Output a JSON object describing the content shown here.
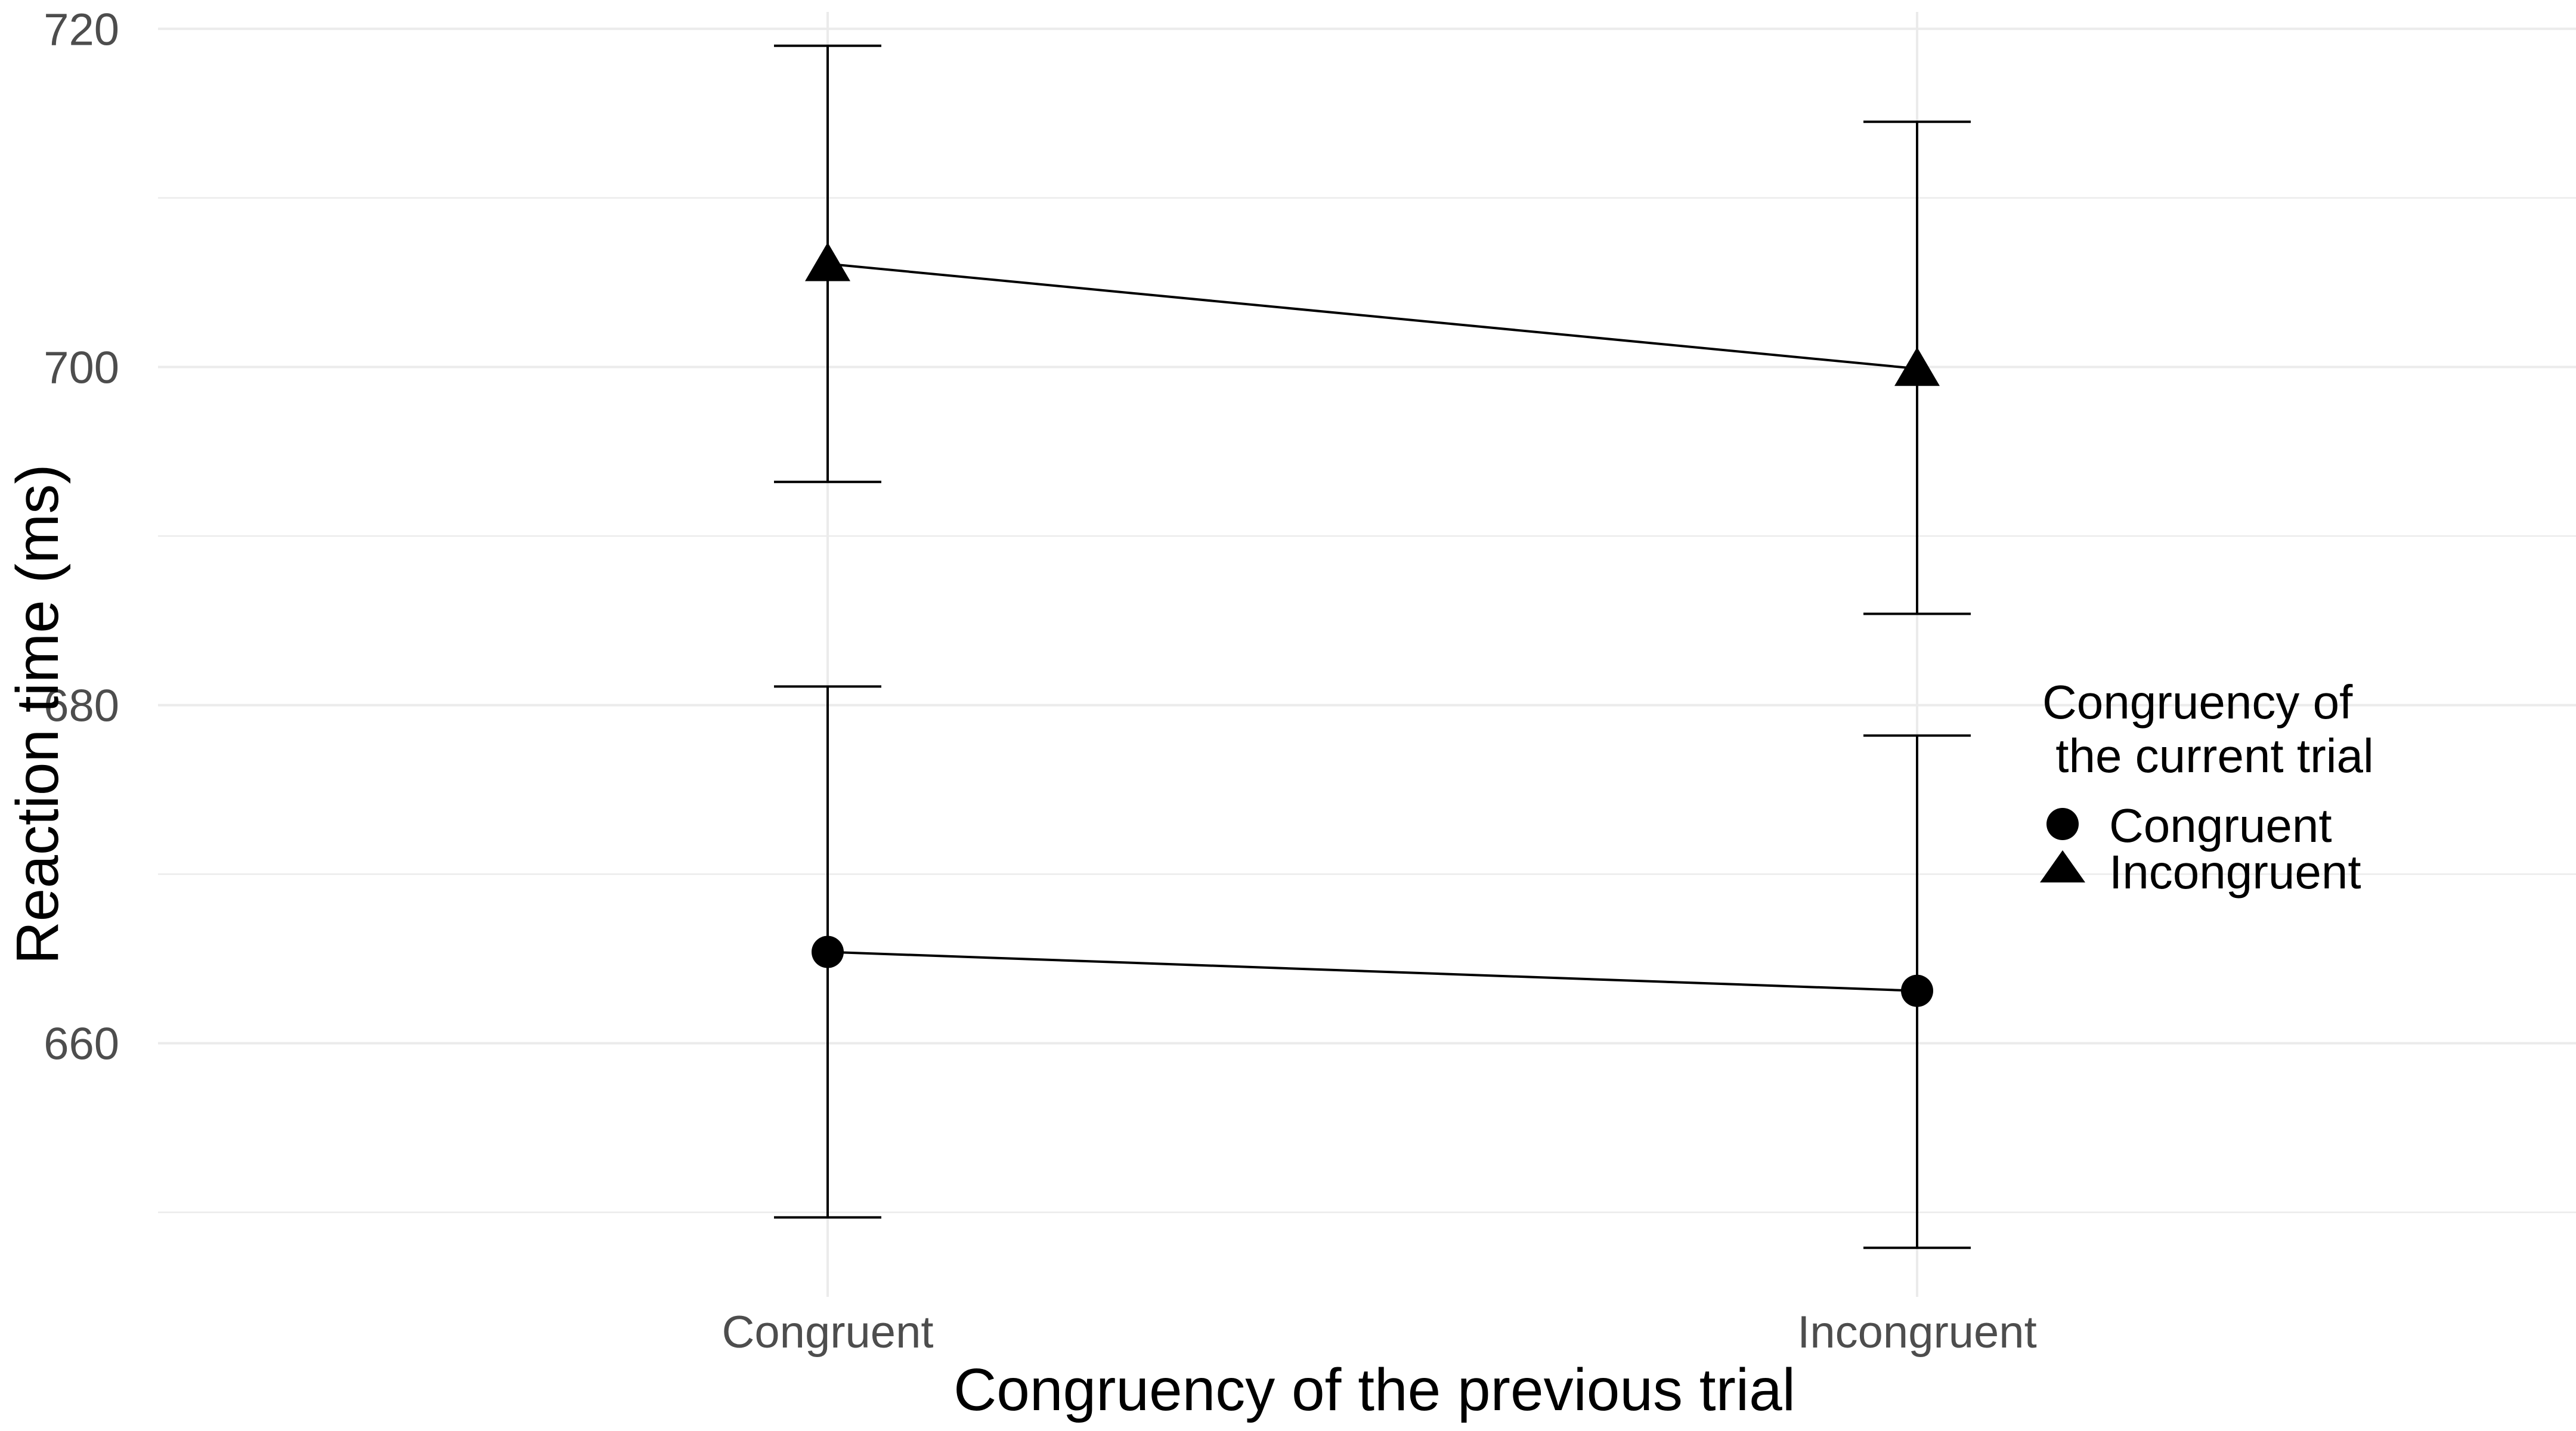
{
  "chart_data": {
    "type": "line",
    "title": "",
    "xlabel": "Congruency of the previous trial",
    "ylabel": "Reaction time (ms)",
    "categories": [
      "Congruent",
      "Incongruent"
    ],
    "ylim": [
      645,
      721
    ],
    "yticks": [
      660,
      680,
      700,
      720
    ],
    "grid": true,
    "legend": {
      "title_lines": [
        "Congruency of",
        " the current trial"
      ],
      "placement": "right"
    },
    "series": [
      {
        "name": "Congruent",
        "marker": "circle",
        "values": [
          665.4,
          663.1
        ],
        "error_lower": [
          649.7,
          647.9
        ],
        "error_upper": [
          681.1,
          678.2
        ]
      },
      {
        "name": "Incongruent",
        "marker": "triangle",
        "values": [
          706.1,
          699.9
        ],
        "error_lower": [
          693.2,
          685.4
        ],
        "error_upper": [
          719.0,
          714.5
        ]
      }
    ],
    "colors": {
      "line": "#000000",
      "grid": "#ebebeb",
      "tick_text": "#4d4d4d"
    }
  }
}
